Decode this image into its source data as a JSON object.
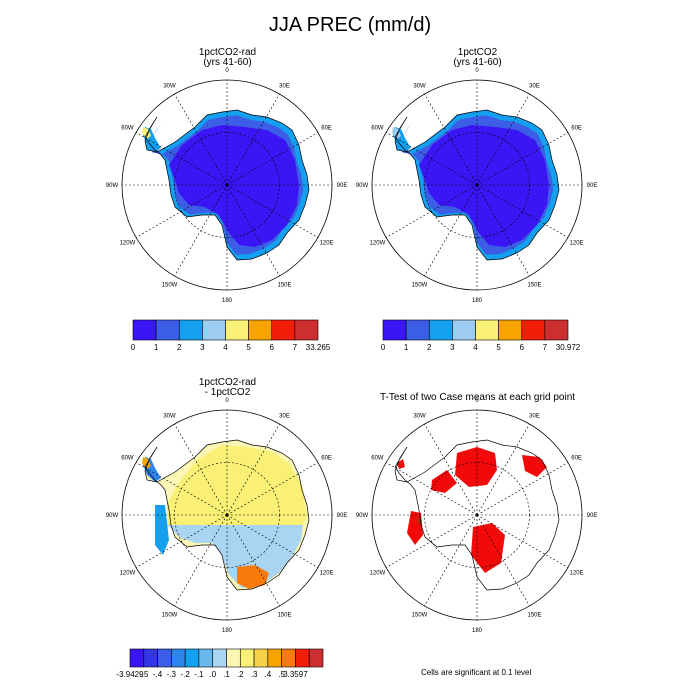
{
  "title": "JJA PREC (mm/d)",
  "panels": [
    {
      "title_line1": "1pctCO2-rad",
      "title_line2": "(yrs 41-60)"
    },
    {
      "title_line1": "1pctCO2",
      "title_line2": "(yrs 41-60)"
    },
    {
      "title_line1": "1pctCO2-rad",
      "title_line2": "- 1pctCO2"
    },
    {
      "title_line1": "T-Test of two Case means at each grid point",
      "title_line2": ""
    }
  ],
  "longitude_labels": [
    "0",
    "30E",
    "60E",
    "90E",
    "120E",
    "150E",
    "180",
    "150W",
    "120W",
    "90W",
    "60W",
    "30W"
  ],
  "colorbars": [
    {
      "labels": [
        "0",
        "1",
        "2",
        "3",
        "4",
        "5",
        "6",
        "7",
        "33.265"
      ],
      "colors": [
        "#3a16f5",
        "#3c5ee6",
        "#13a0f0",
        "#9ccdf0",
        "#faf075",
        "#f8a400",
        "#f31e0a",
        "#cd2e30"
      ]
    },
    {
      "labels": [
        "0",
        "1",
        "2",
        "3",
        "4",
        "5",
        "6",
        "7",
        "30.972"
      ],
      "colors": [
        "#3a16f5",
        "#3c5ee6",
        "#13a0f0",
        "#9ccdf0",
        "#faf075",
        "#f8a400",
        "#f31e0a",
        "#cd2e30"
      ]
    },
    {
      "labels": [
        "-3.9429",
        "-.5",
        "-.4",
        "-.3",
        "-.2",
        "-.1",
        ".0",
        ".1",
        ".2",
        ".3",
        ".4",
        ".5",
        "3.3597"
      ],
      "colors": [
        "#3a16f5",
        "#3335e6",
        "#3c5ee6",
        "#2f86ea",
        "#13a0f0",
        "#69b8ee",
        "#a9d5f3",
        "#fcf7b5",
        "#faf075",
        "#f8d14a",
        "#f8a400",
        "#f87a0a",
        "#f31e0a",
        "#cd2e30"
      ]
    }
  ],
  "significance_note": "Cells are significant at 0.1 level",
  "chart_data": {
    "type": "heatmap",
    "title": "JJA PREC (mm/d)",
    "projection": "south polar stereographic",
    "units": "mm/d",
    "maps": [
      {
        "name": "1pctCO2-rad (yrs 41-60)",
        "min": 0,
        "max": 33.265,
        "levels": [
          1,
          2,
          3,
          4,
          5,
          6,
          7
        ],
        "interior_value_range": [
          0,
          1
        ],
        "coastal_value_range": [
          1,
          3
        ],
        "peninsula_tip_value_range": [
          4,
          5
        ]
      },
      {
        "name": "1pctCO2 (yrs 41-60)",
        "min": 0,
        "max": 30.972,
        "levels": [
          1,
          2,
          3,
          4,
          5,
          6,
          7
        ],
        "interior_value_range": [
          0,
          1
        ],
        "coastal_value_range": [
          1,
          3
        ],
        "peninsula_tip_value_range": [
          3,
          4
        ]
      },
      {
        "name": "1pctCO2-rad - 1pctCO2",
        "min": -3.9429,
        "max": 3.3597,
        "levels": [
          -0.5,
          -0.4,
          -0.3,
          -0.2,
          -0.1,
          0.0,
          0.1,
          0.2,
          0.3,
          0.4,
          0.5
        ],
        "east_antarctica_value_range": [
          0.0,
          0.2
        ],
        "west_antarctica_value_range": [
          -0.2,
          -0.1
        ],
        "peninsula_west_coast_value_range": [
          -0.5,
          -0.3
        ]
      },
      {
        "name": "T-Test of two Case means at each grid point",
        "significance_level": 0.1
      }
    ]
  }
}
